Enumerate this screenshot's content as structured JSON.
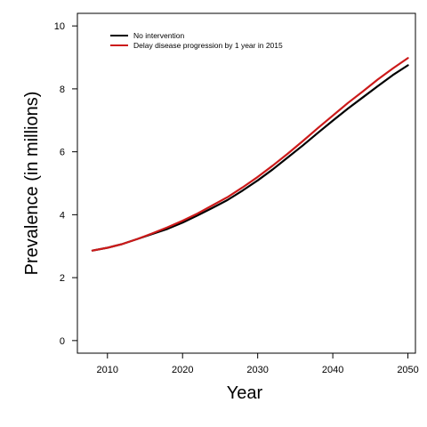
{
  "chart_data": {
    "type": "line",
    "title": "",
    "xlabel": "Year",
    "ylabel": "Prevalence (in millions)",
    "xlim": [
      2006,
      2051
    ],
    "ylim": [
      -0.4,
      10.4
    ],
    "xticks": [
      2010,
      2020,
      2030,
      2040,
      2050
    ],
    "yticks": [
      0,
      2,
      4,
      6,
      8,
      10
    ],
    "grid": false,
    "legend_position": "top-left",
    "x": [
      2008,
      2010,
      2012,
      2014,
      2016,
      2018,
      2020,
      2022,
      2024,
      2026,
      2028,
      2030,
      2032,
      2034,
      2036,
      2038,
      2040,
      2042,
      2044,
      2046,
      2048,
      2050
    ],
    "series": [
      {
        "name": "No intervention",
        "color": "#000000",
        "values": [
          2.86,
          2.95,
          3.07,
          3.23,
          3.39,
          3.55,
          3.75,
          3.98,
          4.22,
          4.47,
          4.77,
          5.09,
          5.44,
          5.82,
          6.2,
          6.6,
          6.99,
          7.37,
          7.73,
          8.09,
          8.44,
          8.75
        ]
      },
      {
        "name": "Delay disease progression by 1 year in 2015",
        "color": "#cc1a1a",
        "values": [
          2.86,
          2.95,
          3.07,
          3.23,
          3.41,
          3.6,
          3.81,
          4.04,
          4.3,
          4.56,
          4.87,
          5.2,
          5.56,
          5.94,
          6.34,
          6.75,
          7.15,
          7.55,
          7.92,
          8.3,
          8.65,
          8.98
        ]
      }
    ]
  }
}
